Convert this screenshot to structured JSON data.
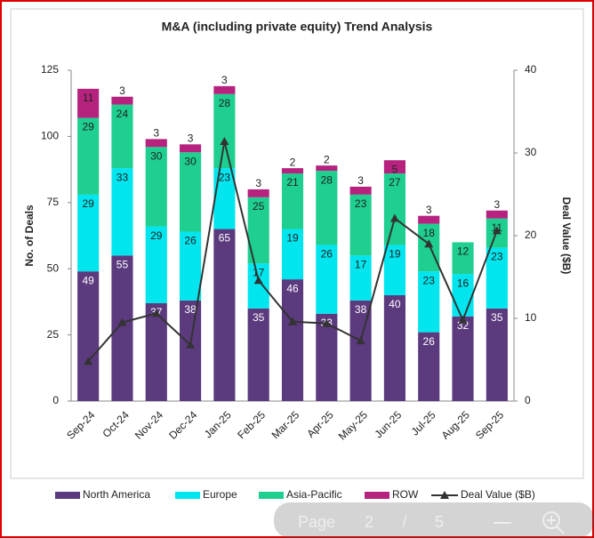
{
  "chart_data": {
    "type": "bar",
    "stacked": true,
    "title": "M&A (including private equity) Trend Analysis",
    "y_label": "No. of Deals",
    "y2_label": "Deal Value ($B)",
    "categories": [
      "Sep-24",
      "Oct-24",
      "Nov-24",
      "Dec-24",
      "Jan-25",
      "Feb-25",
      "Mar-25",
      "Apr-25",
      "May-25",
      "Jun-25",
      "Jul-25",
      "Aug-25",
      "Sep-25"
    ],
    "series": [
      {
        "name": "North America",
        "color": "#5b3a7e",
        "values": [
          49,
          55,
          37,
          38,
          65,
          35,
          46,
          33,
          38,
          40,
          26,
          32,
          35
        ]
      },
      {
        "name": "Europe",
        "color": "#00e5ee",
        "values": [
          29,
          33,
          29,
          26,
          23,
          17,
          19,
          26,
          17,
          19,
          23,
          16,
          23
        ]
      },
      {
        "name": "Asia-Pacific",
        "color": "#1ecf8f",
        "values": [
          29,
          24,
          30,
          30,
          28,
          25,
          21,
          28,
          23,
          27,
          18,
          12,
          11
        ]
      },
      {
        "name": "ROW",
        "color": "#b5237f",
        "values": [
          11,
          3,
          3,
          3,
          3,
          3,
          2,
          2,
          3,
          5,
          3,
          null,
          3
        ]
      },
      {
        "name": "Deal Value ($B)",
        "color": "#333333",
        "type": "line",
        "marker": "triangle",
        "axis": "y2",
        "values": [
          4.8,
          9.5,
          10.6,
          6.8,
          31.4,
          14.6,
          9.6,
          9.4,
          7.3,
          22.1,
          19.0,
          9.8,
          20.6
        ]
      }
    ],
    "ylim": [
      0,
      125
    ],
    "yticks": [
      0,
      25,
      50,
      75,
      100,
      125
    ],
    "y2lim": [
      0,
      40
    ],
    "y2ticks": [
      0,
      10,
      20,
      30,
      40
    ],
    "grid": false,
    "legend": "bottom"
  },
  "viewer": {
    "page_label": "Page",
    "current": "2",
    "separator": "/",
    "total": "5"
  }
}
